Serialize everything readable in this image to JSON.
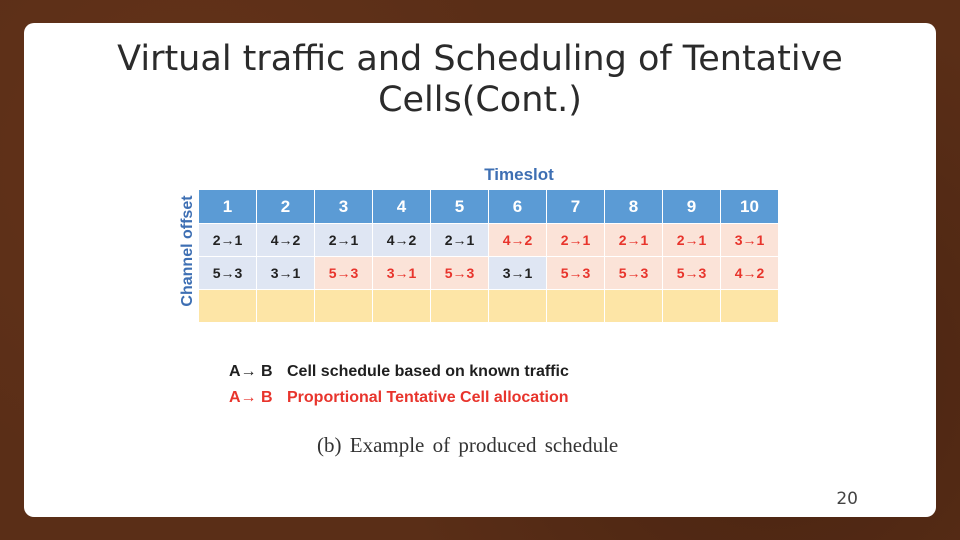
{
  "slide": {
    "title_line1": "Virtual traffic and Scheduling of Tentative",
    "title_line2": "Cells(Cont.)",
    "page_number": "20"
  },
  "figure": {
    "timeslot_label": "Timeslot",
    "channel_label": "Channel offset",
    "timeslots": [
      "1",
      "2",
      "3",
      "4",
      "5",
      "6",
      "7",
      "8",
      "9",
      "10"
    ],
    "rows": [
      [
        {
          "text": "2→1",
          "color": "black",
          "bg": "blue"
        },
        {
          "text": "4→2",
          "color": "black",
          "bg": "blue"
        },
        {
          "text": "2→1",
          "color": "black",
          "bg": "blue"
        },
        {
          "text": "4→2",
          "color": "black",
          "bg": "blue"
        },
        {
          "text": "2→1",
          "color": "black",
          "bg": "blue"
        },
        {
          "text": "4→2",
          "color": "red",
          "bg": "pink"
        },
        {
          "text": "2→1",
          "color": "red",
          "bg": "pink"
        },
        {
          "text": "2→1",
          "color": "red",
          "bg": "pink"
        },
        {
          "text": "2→1",
          "color": "red",
          "bg": "pink"
        },
        {
          "text": "3→1",
          "color": "red",
          "bg": "pink"
        }
      ],
      [
        {
          "text": "5→3",
          "color": "black",
          "bg": "blue"
        },
        {
          "text": "3→1",
          "color": "black",
          "bg": "blue"
        },
        {
          "text": "5→3",
          "color": "red",
          "bg": "pink"
        },
        {
          "text": "3→1",
          "color": "red",
          "bg": "pink"
        },
        {
          "text": "5→3",
          "color": "red",
          "bg": "pink"
        },
        {
          "text": "3→1",
          "color": "black",
          "bg": "blue"
        },
        {
          "text": "5→3",
          "color": "red",
          "bg": "pink"
        },
        {
          "text": "5→3",
          "color": "red",
          "bg": "pink"
        },
        {
          "text": "5→3",
          "color": "red",
          "bg": "pink"
        },
        {
          "text": "4→2",
          "color": "red",
          "bg": "pink"
        }
      ],
      [
        {
          "text": "",
          "color": "black",
          "bg": "yellow"
        },
        {
          "text": "",
          "color": "black",
          "bg": "yellow"
        },
        {
          "text": "",
          "color": "black",
          "bg": "yellow"
        },
        {
          "text": "",
          "color": "black",
          "bg": "yellow"
        },
        {
          "text": "",
          "color": "black",
          "bg": "yellow"
        },
        {
          "text": "",
          "color": "black",
          "bg": "yellow"
        },
        {
          "text": "",
          "color": "black",
          "bg": "yellow"
        },
        {
          "text": "",
          "color": "black",
          "bg": "yellow"
        },
        {
          "text": "",
          "color": "black",
          "bg": "yellow"
        },
        {
          "text": "",
          "color": "black",
          "bg": "yellow"
        }
      ]
    ],
    "legend": [
      {
        "key": "A→ B",
        "text": "Cell schedule based on known traffic",
        "color": "black"
      },
      {
        "key": "A→ B",
        "text": "Proportional Tentative Cell allocation",
        "color": "red"
      }
    ],
    "caption": "(b) Example of produced schedule"
  },
  "colors": {
    "header_blue": "#5b9bd5",
    "known_bg": "#dfe6f3",
    "tentative_bg": "#fbe3d8",
    "empty_bg": "#fde5a6",
    "tentative_text": "#e8342c"
  }
}
